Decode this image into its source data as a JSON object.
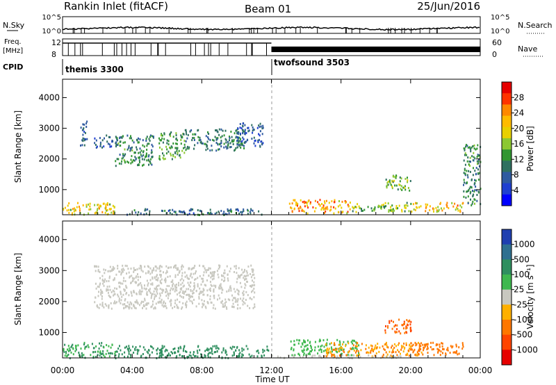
{
  "header": {
    "station": "Rankin Inlet (fitACF)",
    "beam": "Beam 01",
    "date": "25/Jun/2016"
  },
  "status_panels": {
    "nsky_label": "N.Sky",
    "nsearch_label": "N.Search",
    "noise_ticks": [
      "10^5",
      "10^0"
    ],
    "noise_right_ticks": [
      "10^5",
      "10^0"
    ],
    "freq_label": "Freq.",
    "freq_unit": "[MHz]",
    "freq_ticks": [
      "12",
      "8"
    ],
    "nave_label": "Nave",
    "nave_ticks": [
      "60",
      "0"
    ],
    "cpid_label": "CPID",
    "cpid_segments": [
      {
        "label": "themis 3300",
        "start_hour": 0
      },
      {
        "label": "twofsound 3503",
        "start_hour": 12
      }
    ]
  },
  "colorbars": {
    "power": {
      "label": "Power [dB]",
      "ticks": [
        "28",
        "24",
        "20",
        "16",
        "12",
        "8",
        "4"
      ],
      "colors": [
        "#e60000",
        "#ff3300",
        "#ff8800",
        "#ffbb00",
        "#e8d000",
        "#8cc832",
        "#329632",
        "#2f7060",
        "#2f5aa0",
        "#1f3fd0",
        "#0000ff"
      ]
    },
    "velocity": {
      "label": "Velocity [m s⁻¹]",
      "ticks": [
        "1000",
        "500",
        "100",
        "25",
        "-25",
        "-100",
        "-500",
        "-1000"
      ],
      "colors": [
        "#1f3fb0",
        "#2f7090",
        "#2f8f5f",
        "#3fb84f",
        "#c8c8c0",
        "#ffb000",
        "#ff7700",
        "#ff4400",
        "#e60000"
      ]
    }
  },
  "chart_data": {
    "type": "heatmap",
    "xlabel": "Time UT",
    "x_ticks": [
      "00:00",
      "04:00",
      "08:00",
      "12:00",
      "16:00",
      "20:00",
      "00:00"
    ],
    "xlim_hours": [
      0,
      24
    ],
    "ylabel": "Slant Range [km]",
    "y_ticks": [
      1000,
      2000,
      3000,
      4000
    ],
    "ylim_km": [
      180,
      4600
    ],
    "cpid_change_hour": 12,
    "panels": [
      {
        "name": "Power",
        "unit": "dB",
        "regions": [
          {
            "t0": 1.0,
            "t1": 1.4,
            "r0": 2400,
            "r1": 3300,
            "value": 6
          },
          {
            "t0": 1.8,
            "t1": 3.2,
            "r0": 2400,
            "r1": 2800,
            "value": 7
          },
          {
            "t0": 3.0,
            "t1": 5.2,
            "r0": 1800,
            "r1": 2800,
            "value": 10
          },
          {
            "t0": 5.5,
            "t1": 7.0,
            "r0": 2000,
            "r1": 2900,
            "value": 12
          },
          {
            "t0": 7.0,
            "t1": 10.5,
            "r0": 2300,
            "r1": 3000,
            "value": 9
          },
          {
            "t0": 10.0,
            "t1": 11.5,
            "r0": 2400,
            "r1": 3200,
            "value": 6
          },
          {
            "t0": 0.0,
            "t1": 3.0,
            "r0": 200,
            "r1": 600,
            "value": 18
          },
          {
            "t0": 3.5,
            "t1": 11.5,
            "r0": 200,
            "r1": 400,
            "value": 8
          },
          {
            "t0": 13.0,
            "t1": 16.5,
            "r0": 250,
            "r1": 700,
            "value": 22
          },
          {
            "t0": 16.5,
            "t1": 20.0,
            "r0": 300,
            "r1": 600,
            "value": 14
          },
          {
            "t0": 18.5,
            "t1": 20.0,
            "r0": 1000,
            "r1": 1500,
            "value": 14
          },
          {
            "t0": 20.0,
            "t1": 23.0,
            "r0": 300,
            "r1": 600,
            "value": 20
          },
          {
            "t0": 23.0,
            "t1": 24.0,
            "r0": 500,
            "r1": 2500,
            "value": 10
          }
        ]
      },
      {
        "name": "Velocity",
        "unit": "m s-1",
        "regions": [
          {
            "t0": 1.8,
            "t1": 11.0,
            "r0": 1800,
            "r1": 3200,
            "value": 0
          },
          {
            "t0": 0.0,
            "t1": 3.0,
            "r0": 200,
            "r1": 700,
            "value": 100
          },
          {
            "t0": 3.0,
            "t1": 12.0,
            "r0": 200,
            "r1": 600,
            "value": 200
          },
          {
            "t0": 13.0,
            "t1": 17.0,
            "r0": 300,
            "r1": 800,
            "value": 80
          },
          {
            "t0": 15.0,
            "t1": 21.0,
            "r0": 250,
            "r1": 700,
            "value": -100
          },
          {
            "t0": 18.5,
            "t1": 20.0,
            "r0": 1000,
            "r1": 1500,
            "value": -500
          },
          {
            "t0": 20.0,
            "t1": 23.0,
            "r0": 300,
            "r1": 700,
            "value": -300
          },
          {
            "t0": 12.0,
            "t1": 20.0,
            "r0": 200,
            "r1": 300,
            "value": 0
          }
        ]
      }
    ]
  }
}
